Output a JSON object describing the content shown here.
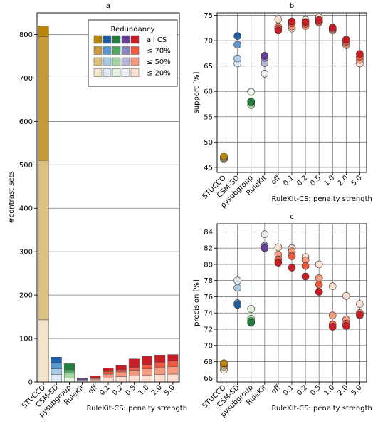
{
  "colors": {
    "STUCCO": [
      "#b8860b",
      "#c69a3a",
      "#dcc084",
      "#f3e4cc"
    ],
    "CSM-SD": [
      "#1f5fa8",
      "#5b9bd0",
      "#a9cbe6",
      "#deebf7"
    ],
    "pysubgroup": [
      "#237f3d",
      "#4faa5f",
      "#a3d6a0",
      "#e5f5e0"
    ],
    "RuleKit": [
      "#6a3d9a",
      "#8c87c3",
      "#b8b5da",
      "#ececf5"
    ],
    "RuleKit-CS": [
      "#c81d25",
      "#ef5a43",
      "#f49a7f",
      "#fde0d2"
    ]
  },
  "groups": [
    "STUCCO",
    "CSM-SD",
    "pysubgroup",
    "RuleKit",
    "RuleKit-CS",
    "RuleKit-CS",
    "RuleKit-CS",
    "RuleKit-CS",
    "RuleKit-CS",
    "RuleKit-CS",
    "RuleKit-CS"
  ],
  "chart_data": [
    {
      "type": "bar",
      "title": "a",
      "ylabel": "#contrast sets",
      "xlabel": "RuleKit-CS: penalty strength",
      "categories": [
        "STUCCO",
        "CSM-SD",
        "pysubgroup",
        "RuleKit",
        "off",
        "0.1",
        "0.2",
        "0.5",
        "1.0",
        "2.0",
        "5.0"
      ],
      "ylim": [
        0,
        850
      ],
      "yticks": [
        0,
        100,
        200,
        300,
        400,
        500,
        600,
        700,
        800
      ],
      "grid": "horizontal",
      "stacked_bands": [
        "≤ 20%",
        "≤ 50%",
        "≤ 70%",
        "all CS"
      ],
      "series": [
        {
          "name": "≤ 20%",
          "values": [
            143,
            17,
            9,
            3,
            5,
            9,
            12,
            14,
            15,
            17,
            18
          ]
        },
        {
          "name": "≤ 50%",
          "values": [
            510,
            30,
            20,
            5,
            8,
            18,
            23,
            27,
            30,
            33,
            35
          ]
        },
        {
          "name": "≤ 70%",
          "values": [
            795,
            43,
            28,
            6,
            10,
            24,
            28,
            33,
            40,
            45,
            48
          ]
        },
        {
          "name": "all CS",
          "values": [
            820,
            57,
            42,
            9,
            14,
            32,
            39,
            53,
            59,
            62,
            63
          ]
        }
      ],
      "legend": {
        "title": "Redundancy",
        "placement": "upper-right",
        "labels": [
          "all CS",
          "≤ 70%",
          "≤ 50%",
          "≤ 20%"
        ]
      }
    },
    {
      "type": "scatter",
      "title": "b",
      "ylabel": "support [%]",
      "xlabel": "RuleKit-CS: penalty strength",
      "categories": [
        "STUCCO",
        "CSM-SD",
        "pysubgroup",
        "RuleKit",
        "off",
        "0.1",
        "0.2",
        "0.5",
        "1.0",
        "2.0",
        "5.0"
      ],
      "ylim": [
        44,
        75.5
      ],
      "yticks": [
        45,
        50,
        55,
        60,
        65,
        70,
        75
      ],
      "grid": "both",
      "series": [
        {
          "name": "all CS",
          "values": [
            47.2,
            70.9,
            58.0,
            67.0,
            72.0,
            73.8,
            73.7,
            74.1,
            72.6,
            70.2,
            67.4
          ]
        },
        {
          "name": "≤ 70%",
          "values": [
            47.0,
            69.2,
            57.8,
            66.6,
            72.4,
            73.4,
            73.3,
            73.8,
            72.4,
            69.8,
            66.8
          ]
        },
        {
          "name": "≤ 50%",
          "values": [
            46.8,
            66.5,
            57.3,
            65.6,
            72.8,
            72.8,
            72.9,
            73.6,
            72.2,
            69.4,
            66.2
          ]
        },
        {
          "name": "≤ 20%",
          "values": [
            46.6,
            65.5,
            59.9,
            63.5,
            74.2,
            72.4,
            74.1,
            74.6,
            72.0,
            69.1,
            65.5
          ]
        }
      ]
    },
    {
      "type": "scatter",
      "title": "c",
      "ylabel": "precision [%]",
      "xlabel": "RuleKit-CS: penalty strength",
      "categories": [
        "STUCCO",
        "CSM-SD",
        "pysubgroup",
        "RuleKit",
        "off",
        "0.1",
        "0.2",
        "0.5",
        "1.0",
        "2.0",
        "5.0"
      ],
      "ylim": [
        65.5,
        85
      ],
      "yticks": [
        66,
        68,
        70,
        72,
        74,
        76,
        78,
        80,
        82,
        84
      ],
      "grid": "both",
      "series": [
        {
          "name": "all CS",
          "values": [
            67.8,
            75.0,
            72.8,
            82.0,
            80.2,
            79.6,
            78.5,
            76.6,
            72.3,
            72.4,
            73.8
          ]
        },
        {
          "name": "≤ 70%",
          "values": [
            67.6,
            75.2,
            73.0,
            82.3,
            80.6,
            81.0,
            79.8,
            77.5,
            72.6,
            72.7,
            73.7
          ]
        },
        {
          "name": "≤ 50%",
          "values": [
            67.4,
            77.1,
            73.3,
            82.0,
            81.2,
            81.6,
            80.5,
            78.3,
            73.7,
            73.2,
            74.0
          ]
        },
        {
          "name": "≤ 20%",
          "values": [
            67.0,
            78.0,
            74.5,
            83.7,
            82.1,
            82.0,
            80.9,
            80.0,
            77.3,
            76.1,
            75.1
          ]
        }
      ]
    }
  ]
}
